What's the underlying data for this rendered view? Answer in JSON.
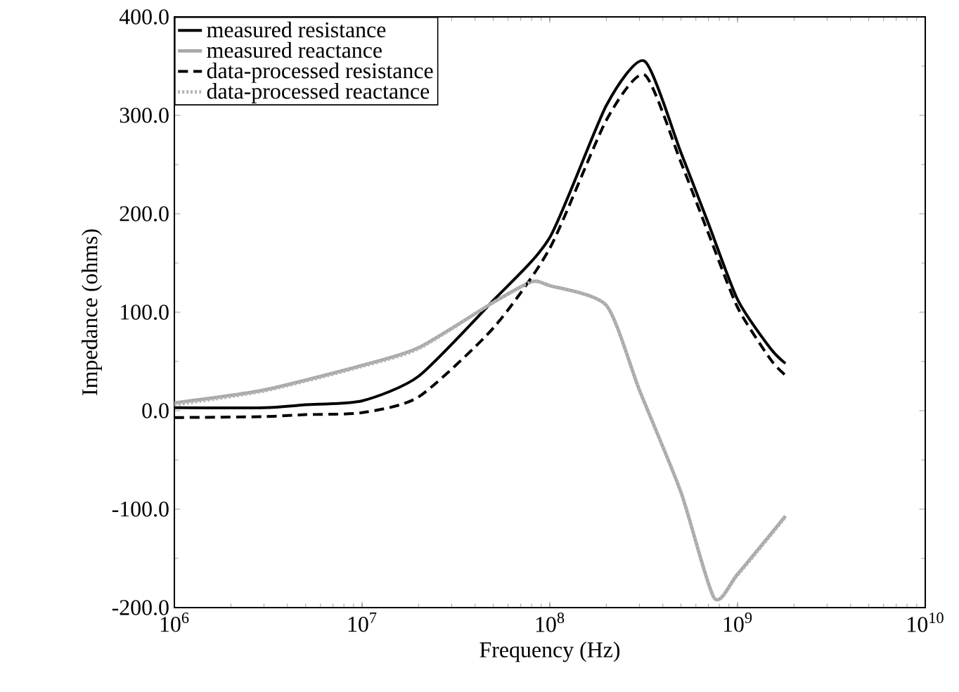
{
  "chart_data": {
    "type": "line",
    "xlabel": "Frequency (Hz)",
    "ylabel": "Impedance (ohms)",
    "log": "x",
    "xlim": [
      1000000,
      10000000000
    ],
    "ylim": [
      -200,
      400
    ],
    "xticks": [
      {
        "value": 1000000,
        "label": "10$^{6}$"
      },
      {
        "value": 10000000,
        "label": "10$^{7}$"
      },
      {
        "value": 100000000,
        "label": "10$^{8}$"
      },
      {
        "value": 1000000000,
        "label": "10$^{9}$"
      },
      {
        "value": 10000000000,
        "label": "10$^{10}$"
      }
    ],
    "yticks": [
      {
        "value": -200,
        "label": "-200.0"
      },
      {
        "value": -100,
        "label": "-100.0"
      },
      {
        "value": 0,
        "label": "0.0"
      },
      {
        "value": 100,
        "label": "100.0"
      },
      {
        "value": 200,
        "label": "200.0"
      },
      {
        "value": 300,
        "label": "300.0"
      },
      {
        "value": 400,
        "label": "400.0"
      }
    ],
    "legend": "top left",
    "grid": false,
    "marker": "none",
    "series": [
      {
        "name": "measured resistance",
        "color": "#000000",
        "line_style": "solid",
        "x": [
          1000000,
          3000000,
          5000000,
          10000000,
          20000000,
          50000000,
          100000000,
          200000000,
          320000000,
          500000000,
          700000000,
          1000000000,
          1500000000,
          1800000000
        ],
        "values": [
          3,
          3,
          6,
          10,
          35,
          112,
          176,
          310,
          355,
          262,
          190,
          113,
          63,
          48
        ]
      },
      {
        "name": "measured reactance",
        "color": "#a8a8a8",
        "line_style": "solid",
        "x": [
          1000000,
          3000000,
          10000000,
          20000000,
          50000000,
          80000000,
          100000000,
          200000000,
          300000000,
          500000000,
          750000000,
          1000000000,
          1800000000
        ],
        "values": [
          8,
          21,
          46,
          64,
          110,
          131,
          127,
          107,
          21,
          -83,
          -190,
          -166,
          -107
        ]
      },
      {
        "name": "data-processed resistance",
        "color": "#000000",
        "line_style": "dashed",
        "x": [
          1000000,
          3000000,
          5000000,
          10000000,
          20000000,
          50000000,
          100000000,
          200000000,
          320000000,
          500000000,
          700000000,
          1000000000,
          1500000000,
          1800000000
        ],
        "values": [
          -7,
          -6,
          -4,
          -2,
          14,
          84,
          165,
          295,
          341,
          252,
          180,
          105,
          52,
          36
        ]
      },
      {
        "name": "data-processed reactance",
        "color": "#b4b4b4",
        "line_style": "dotted",
        "x": [
          1000000,
          3000000,
          10000000,
          20000000,
          50000000,
          80000000,
          100000000,
          200000000,
          300000000,
          500000000,
          750000000,
          1000000000,
          1800000000
        ],
        "values": [
          6,
          20,
          45,
          63,
          110,
          131,
          127,
          107,
          21,
          -83,
          -190,
          -167,
          -108
        ]
      }
    ]
  }
}
